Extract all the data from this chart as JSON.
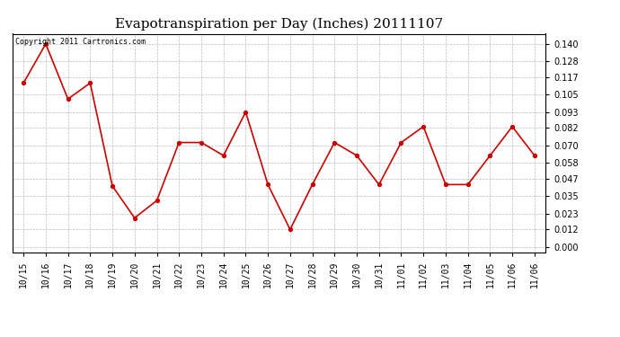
{
  "title": "Evapotranspiration per Day (Inches) 20111107",
  "copyright": "Copyright 2011 Cartronics.com",
  "x_labels": [
    "10/15",
    "10/16",
    "10/17",
    "10/18",
    "10/19",
    "10/20",
    "10/21",
    "10/22",
    "10/23",
    "10/24",
    "10/25",
    "10/26",
    "10/27",
    "10/28",
    "10/29",
    "10/30",
    "10/31",
    "11/01",
    "11/02",
    "11/03",
    "11/04",
    "11/05",
    "11/06",
    "11/06"
  ],
  "y_values": [
    0.113,
    0.14,
    0.102,
    0.113,
    0.042,
    0.02,
    0.032,
    0.072,
    0.072,
    0.063,
    0.093,
    0.043,
    0.012,
    0.043,
    0.072,
    0.063,
    0.043,
    0.072,
    0.083,
    0.043,
    0.043,
    0.063,
    0.083,
    0.063
  ],
  "y_ticks": [
    0.0,
    0.012,
    0.023,
    0.035,
    0.047,
    0.058,
    0.07,
    0.082,
    0.093,
    0.105,
    0.117,
    0.128,
    0.14
  ],
  "line_color": "#cc0000",
  "marker_color": "#cc0000",
  "marker_size": 3,
  "background_color": "#ffffff",
  "grid_color": "#bbbbbb",
  "title_fontsize": 11,
  "copyright_fontsize": 6,
  "tick_fontsize": 7
}
